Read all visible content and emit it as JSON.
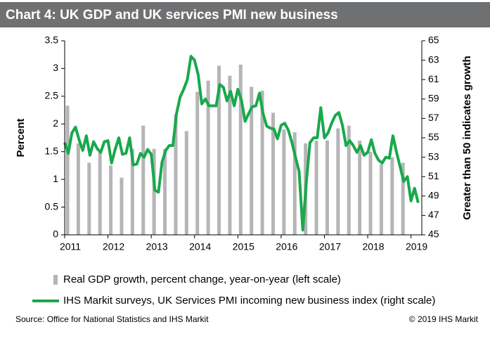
{
  "chart_data": {
    "type": "bar-line",
    "title": "Chart 4: UK GDP and UK services PMI new business",
    "ylabel": "Percent",
    "y2label": "Greater than 50 indicates growth",
    "xlim": [
      2011,
      2019.25
    ],
    "xticks": [
      2011,
      2012,
      2013,
      2014,
      2015,
      2016,
      2017,
      2018,
      2019
    ],
    "ylim": [
      0,
      3.5
    ],
    "yticks": [
      0,
      0.5,
      1,
      1.5,
      2,
      2.5,
      3,
      3.5
    ],
    "y2lim": [
      45,
      65
    ],
    "y2ticks": [
      45,
      47,
      49,
      51,
      53,
      55,
      57,
      59,
      61,
      63,
      65
    ],
    "grid": false,
    "series": [
      {
        "name": "Real GDP growth, percent change, year-on-year (left scale)",
        "type": "bar",
        "color": "#b5b5b5",
        "values": [
          2.33,
          1.65,
          1.3,
          1.5,
          1.25,
          1.03,
          1.55,
          1.97,
          1.55,
          1.55,
          2.17,
          1.87,
          2.58,
          2.78,
          3.05,
          2.87,
          3.07,
          2.67,
          2.6,
          2.2,
          1.9,
          1.85,
          1.65,
          1.7,
          1.7,
          1.92,
          1.97,
          1.7,
          1.5,
          1.27,
          1.4,
          1.3
        ]
      },
      {
        "name": "IHS Markit surveys, UK Services PMI incoming new business index (right scale)",
        "type": "line",
        "axis": "y2",
        "color": "#19a84c",
        "values": [
          54.5,
          53.4,
          55.5,
          56.1,
          54.8,
          53.7,
          55.2,
          53.2,
          54.6,
          53.9,
          53.5,
          54.6,
          54.7,
          52.4,
          53.8,
          55.0,
          53.3,
          53.4,
          55.0,
          52.2,
          52.3,
          53.4,
          53.0,
          53.8,
          53.3,
          49.6,
          49.4,
          52.5,
          53.7,
          54.2,
          54.2,
          57.5,
          59.2,
          60.0,
          61.0,
          63.4,
          63.0,
          61.5,
          58.5,
          59.0,
          58.3,
          58.3,
          58.3,
          60.5,
          60.2,
          58.8,
          59.8,
          58.3,
          60.0,
          58.9,
          56.7,
          57.5,
          58.2,
          58.3,
          59.6,
          57.5,
          56.2,
          56.0,
          55.9,
          54.9,
          56.3,
          56.5,
          55.8,
          54.5,
          53.0,
          51.5,
          45.5,
          50.5,
          54.5,
          55.0,
          55.0,
          58.1,
          55.0,
          55.5,
          56.5,
          57.3,
          57.6,
          56.3,
          54.2,
          54.7,
          54.2,
          53.5,
          54.2,
          53.2,
          53.5,
          54.8,
          53.4,
          52.7,
          52.4,
          53.0,
          52.9,
          55.2,
          53.5,
          52.0,
          50.5,
          51.0,
          48.5,
          49.8,
          48.3
        ]
      }
    ],
    "source": "Source: Office for National Statistics and IHS Markit",
    "copyright": "© 2019 IHS Markit"
  }
}
